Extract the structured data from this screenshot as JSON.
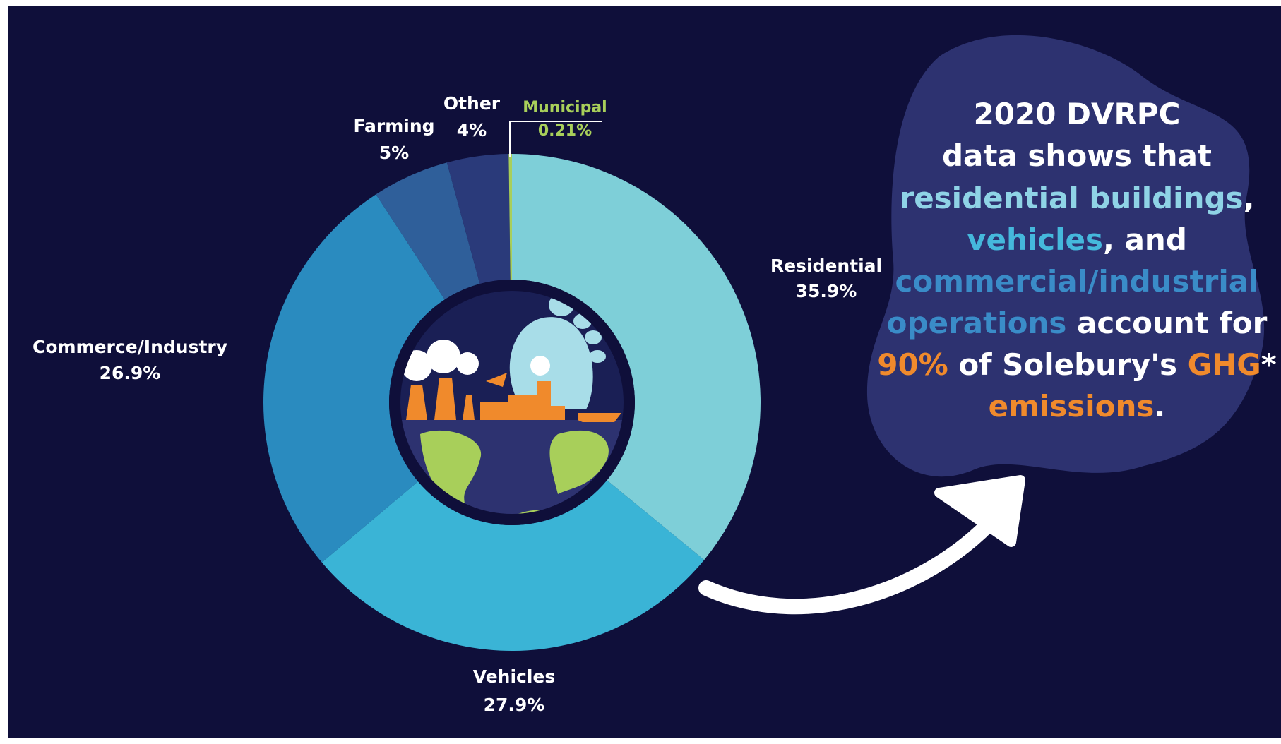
{
  "chart_data": {
    "type": "donut",
    "categories": [
      "Residential",
      "Vehicles",
      "Commerce/Industry",
      "Farming",
      "Other",
      "Municipal"
    ],
    "values": [
      35.9,
      27.9,
      26.9,
      5,
      4,
      0.21
    ],
    "value_labels": [
      "35.9%",
      "27.9%",
      "26.9%",
      "5%",
      "4%",
      "0.21%"
    ],
    "colors": [
      "#7ecfd8",
      "#3ab4d6",
      "#2a8bbf",
      "#2f5f9a",
      "#2a3a7a",
      "#a8cf5a"
    ]
  },
  "callout": {
    "lines": [
      [
        {
          "text": "2020 DVRPC",
          "color": "#ffffff"
        }
      ],
      [
        {
          "text": "data shows that",
          "color": "#ffffff"
        }
      ],
      [
        {
          "text": "residential buildings",
          "color": "#8fd3e6"
        },
        {
          "text": ",",
          "color": "#ffffff"
        }
      ],
      [
        {
          "text": "vehicles",
          "color": "#45b8dc"
        },
        {
          "text": ", and",
          "color": "#ffffff"
        }
      ],
      [
        {
          "text": "commercial/industrial",
          "color": "#3a8cc8"
        }
      ],
      [
        {
          "text": "operations",
          "color": "#3a8cc8"
        },
        {
          "text": " account for",
          "color": "#ffffff"
        }
      ],
      [
        {
          "text": "90%",
          "color": "#f08a2c"
        },
        {
          "text": " of Solebury's ",
          "color": "#ffffff"
        },
        {
          "text": "GHG",
          "color": "#f08a2c"
        },
        {
          "text": "*",
          "color": "#ffffff"
        }
      ],
      [
        {
          "text": "emissions",
          "color": "#f08a2c"
        },
        {
          "text": ".",
          "color": "#ffffff"
        }
      ]
    ]
  }
}
